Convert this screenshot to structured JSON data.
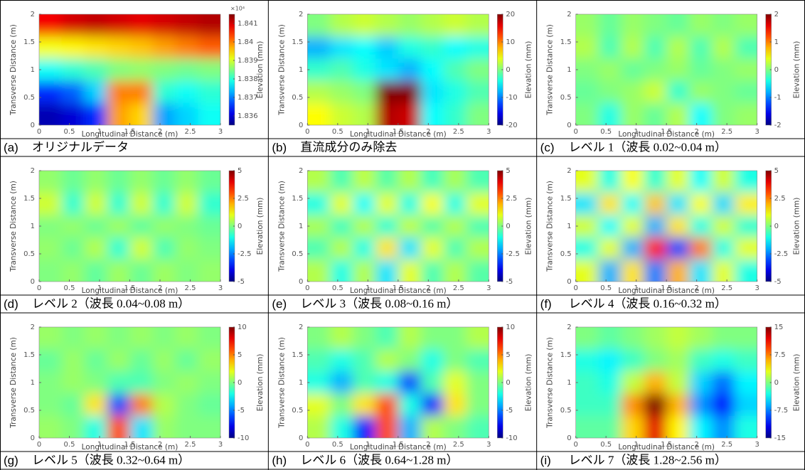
{
  "chart_data": [
    {
      "type": "heatmap",
      "label": "(a)",
      "caption": "オリジナルデータ",
      "xlabel": "Longitudinal Distance (m)",
      "ylabel": "Transverse Distance (m)",
      "colorbar_label": "Elevation (mm)",
      "colorbar_exponent": "×10⁴",
      "colormap": "jet",
      "xlim": [
        0,
        3
      ],
      "ylim": [
        0,
        2
      ],
      "xticks": [
        0,
        0.5,
        1,
        1.5,
        2,
        2.5,
        3
      ],
      "yticks": [
        0,
        0.5,
        1,
        1.5,
        2
      ],
      "zlim": [
        1.8355,
        1.8415
      ],
      "zticks": [
        1.836,
        1.837,
        1.838,
        1.839,
        1.84,
        1.841
      ],
      "values": [
        [
          1.8408,
          1.841,
          1.8411,
          1.841,
          1.8409,
          1.841,
          1.8411,
          1.8412
        ],
        [
          1.8392,
          1.8393,
          1.8394,
          1.8395,
          1.8396,
          1.8398,
          1.84,
          1.8402
        ],
        [
          1.8378,
          1.838,
          1.8382,
          1.8385,
          1.8386,
          1.8385,
          1.8384,
          1.8385
        ],
        [
          1.8365,
          1.8368,
          1.8375,
          1.84,
          1.84,
          1.838,
          1.8378,
          1.838
        ],
        [
          1.8358,
          1.836,
          1.8365,
          1.8398,
          1.8395,
          1.8372,
          1.8375,
          1.8378
        ]
      ]
    },
    {
      "type": "heatmap",
      "label": "(b)",
      "caption": "直流成分のみ除去",
      "xlabel": "Longitudinal Distance (m)",
      "ylabel": "Transverse Distance (m)",
      "colorbar_label": "Elevation (mm)",
      "colormap": "jet",
      "xlim": [
        0,
        3
      ],
      "ylim": [
        0,
        2
      ],
      "xticks": [
        0,
        0.5,
        1,
        1.5,
        2,
        2.5,
        3
      ],
      "yticks": [
        0,
        0.5,
        1,
        1.5,
        2
      ],
      "zlim": [
        -20,
        20
      ],
      "zticks": [
        -20,
        -10,
        0,
        10,
        20
      ],
      "values": [
        [
          0,
          2,
          3,
          2,
          1,
          2,
          3,
          2
        ],
        [
          -8,
          -6,
          -5,
          -7,
          -4,
          -3,
          -5,
          -4
        ],
        [
          -3,
          -2,
          -4,
          -6,
          -8,
          -5,
          -2,
          0
        ],
        [
          2,
          1,
          0,
          20,
          20,
          -6,
          -4,
          -2
        ],
        [
          5,
          3,
          2,
          18,
          17,
          -5,
          -3,
          0
        ]
      ]
    },
    {
      "type": "heatmap",
      "label": "(c)",
      "caption": "レベル 1（波長 0.02~0.04 m）",
      "xlabel": "Longitudinal Distance (m)",
      "ylabel": "Transverse Distance (m)",
      "colorbar_label": "Elevation (mm)",
      "colormap": "jet",
      "xlim": [
        0,
        3
      ],
      "ylim": [
        0,
        2
      ],
      "xticks": [
        0,
        0.5,
        1,
        1.5,
        2,
        2.5,
        3
      ],
      "yticks": [
        0,
        0.5,
        1,
        1.5,
        2
      ],
      "zlim": [
        -2,
        2
      ],
      "zticks": [
        -2,
        -1,
        0,
        1,
        2
      ],
      "values": [
        [
          0.1,
          -0.1,
          0.1,
          0,
          -0.1,
          0.1,
          0,
          0.1
        ],
        [
          0.2,
          -0.2,
          0.2,
          -0.2,
          0.2,
          -0.2,
          0.2,
          -0.2
        ],
        [
          0,
          0.1,
          -0.1,
          0,
          0.1,
          -0.1,
          0,
          0.1
        ],
        [
          -0.1,
          0,
          0.1,
          0.3,
          -0.3,
          0.1,
          0,
          -0.1
        ],
        [
          0,
          -0.4,
          0.1,
          -0.1,
          0.2,
          -0.5,
          0,
          0.1
        ]
      ]
    },
    {
      "type": "heatmap",
      "label": "(d)",
      "caption": "レベル 2（波長 0.04~0.08 m）",
      "xlabel": "Longitudinal Distance (m)",
      "ylabel": "Transverse Distance (m)",
      "colorbar_label": "Elevation (mm)",
      "colormap": "jet",
      "xlim": [
        0,
        3
      ],
      "ylim": [
        0,
        2
      ],
      "xticks": [
        0,
        0.5,
        1,
        1.5,
        2,
        2.5,
        3
      ],
      "yticks": [
        0,
        0.5,
        1,
        1.5,
        2
      ],
      "zlim": [
        -5,
        5
      ],
      "zticks": [
        -5,
        -2.5,
        0,
        2.5,
        5
      ],
      "values": [
        [
          0.2,
          -0.2,
          0.2,
          -0.2,
          0.2,
          -0.2,
          0.2,
          -0.2
        ],
        [
          0.8,
          -0.8,
          0.8,
          -0.8,
          0.8,
          -0.8,
          0.8,
          -0.8
        ],
        [
          0,
          0.2,
          -0.2,
          0.3,
          -0.3,
          0.2,
          0,
          -0.2
        ],
        [
          0.2,
          -0.2,
          0.5,
          -0.8,
          0.8,
          -0.5,
          0.2,
          0
        ],
        [
          0,
          0.2,
          -0.3,
          0.3,
          -0.2,
          0.3,
          0,
          0.2
        ]
      ]
    },
    {
      "type": "heatmap",
      "label": "(e)",
      "caption": "レベル 3（波長 0.08~0.16 m）",
      "xlabel": "Longitudinal Distance (m)",
      "ylabel": "Transverse Distance (m)",
      "colorbar_label": "Elevation (mm)",
      "colormap": "jet",
      "xlim": [
        0,
        3
      ],
      "ylim": [
        0,
        2
      ],
      "xticks": [
        0,
        0.5,
        1,
        1.5,
        2,
        2.5,
        3
      ],
      "yticks": [
        0,
        0.5,
        1,
        1.5,
        2
      ],
      "zlim": [
        -5,
        5
      ],
      "zticks": [
        -5,
        -2.5,
        0,
        2.5,
        5
      ],
      "values": [
        [
          0.5,
          -0.5,
          0.6,
          -0.4,
          0.5,
          -0.6,
          0.4,
          -0.5
        ],
        [
          -1,
          1,
          -1.2,
          1,
          -1,
          1.2,
          -1,
          1
        ],
        [
          0.4,
          -0.6,
          0.5,
          -0.8,
          0.6,
          -0.4,
          0.5,
          -0.5
        ],
        [
          -0.5,
          0.5,
          -1,
          1.5,
          -1.5,
          1,
          -0.5,
          0.5
        ],
        [
          0.5,
          -1,
          0.5,
          -1.5,
          1,
          -0.5,
          0.5,
          -0.4
        ]
      ]
    },
    {
      "type": "heatmap",
      "label": "(f)",
      "caption": "レベル 4（波長 0.16~0.32 m）",
      "xlabel": "Longitudinal Distance (m)",
      "ylabel": "Transverse Distance (m)",
      "colorbar_label": "Elevation (mm)",
      "colormap": "jet",
      "xlim": [
        0,
        3
      ],
      "ylim": [
        0,
        2
      ],
      "xticks": [
        0,
        0.5,
        1,
        1.5,
        2,
        2.5,
        3
      ],
      "yticks": [
        0,
        0.5,
        1,
        1.5,
        2
      ],
      "zlim": [
        -5,
        5
      ],
      "zticks": [
        -5,
        -2.5,
        0,
        2.5,
        5
      ],
      "values": [
        [
          1,
          -1,
          1.2,
          -0.8,
          1,
          -1.2,
          0.8,
          -1
        ],
        [
          -1.5,
          1.5,
          -1.2,
          1.8,
          -1.5,
          1.2,
          -1.6,
          1.4
        ],
        [
          0.8,
          -1.2,
          1,
          -2,
          1.5,
          -1,
          0.8,
          -0.8
        ],
        [
          -1,
          1,
          -2,
          3.5,
          -3,
          2.5,
          -1,
          1
        ],
        [
          1,
          -2,
          1.5,
          -2.5,
          2,
          -1.5,
          1,
          -1
        ]
      ]
    },
    {
      "type": "heatmap",
      "label": "(g)",
      "caption": "レベル 5（波長 0.32~0.64 m）",
      "xlabel": "Longitudinal Distance (m)",
      "ylabel": "Transverse Distance (m)",
      "colorbar_label": "Elevation (mm)",
      "colormap": "jet",
      "xlim": [
        0,
        3
      ],
      "ylim": [
        0,
        2
      ],
      "xticks": [
        0,
        0.5,
        1,
        1.5,
        2,
        2.5,
        3
      ],
      "yticks": [
        0,
        0.5,
        1,
        1.5,
        2
      ],
      "zlim": [
        -10,
        10
      ],
      "zticks": [
        -10,
        -5,
        0,
        5,
        10
      ],
      "values": [
        [
          0.5,
          0,
          0.5,
          0,
          0.5,
          0,
          0.5,
          0
        ],
        [
          -0.5,
          0.5,
          -0.5,
          0.5,
          -0.5,
          0.5,
          -0.5,
          0.5
        ],
        [
          0,
          0.5,
          0,
          -1,
          -1,
          0,
          0.5,
          0
        ],
        [
          0,
          -0.5,
          3,
          -6,
          5,
          1,
          0,
          -0.5
        ],
        [
          0.5,
          0,
          -2,
          6,
          -3,
          0.5,
          0,
          0
        ]
      ]
    },
    {
      "type": "heatmap",
      "label": "(h)",
      "caption": "レベル 6（波長 0.64~1.28 m）",
      "xlabel": "Longitudinal Distance (m)",
      "ylabel": "Transverse Distance (m)",
      "colorbar_label": "Elevation (mm)",
      "colormap": "jet",
      "xlim": [
        0,
        3
      ],
      "ylim": [
        0,
        2
      ],
      "xticks": [
        0,
        0.5,
        1,
        1.5,
        2,
        2.5,
        3
      ],
      "yticks": [
        0,
        0.5,
        1,
        1.5,
        2
      ],
      "zlim": [
        -10,
        10
      ],
      "zticks": [
        -10,
        -5,
        0,
        5,
        10
      ],
      "values": [
        [
          0,
          1,
          0,
          -1,
          1,
          0,
          0,
          1
        ],
        [
          -1,
          -2,
          -1,
          1,
          0,
          -2,
          0,
          -1
        ],
        [
          -2,
          -4,
          -1,
          -2,
          -6,
          -1,
          2,
          0
        ],
        [
          2,
          0,
          3,
          6,
          -2,
          -7,
          3,
          0
        ],
        [
          1,
          -2,
          -7,
          6,
          -4,
          1,
          0,
          -1
        ]
      ]
    },
    {
      "type": "heatmap",
      "label": "(i)",
      "caption": "レベル 7（波長 1.28~2.56 m）",
      "xlabel": "Longitudinal Distance (m)",
      "ylabel": "Transverse Distance (m)",
      "colorbar_label": "Elevation (mm)",
      "colormap": "jet",
      "xlim": [
        0,
        3
      ],
      "ylim": [
        0,
        2
      ],
      "xticks": [
        0,
        0.5,
        1,
        1.5,
        2,
        2.5,
        3
      ],
      "yticks": [
        0,
        0.5,
        1,
        1.5,
        2
      ],
      "zlim": [
        -15,
        15
      ],
      "zticks": [
        -15,
        -7.5,
        0,
        7.5,
        15
      ],
      "values": [
        [
          0,
          -1,
          0,
          1,
          2,
          1,
          0,
          0
        ],
        [
          -3,
          -4,
          -2,
          0,
          1,
          -2,
          -3,
          -2
        ],
        [
          -2,
          -3,
          2,
          6,
          2,
          -5,
          -8,
          -4
        ],
        [
          -2,
          -2,
          7,
          15,
          6,
          -7,
          -11,
          -5
        ],
        [
          -1,
          -1,
          5,
          12,
          4,
          -4,
          -7,
          -3
        ]
      ]
    }
  ]
}
